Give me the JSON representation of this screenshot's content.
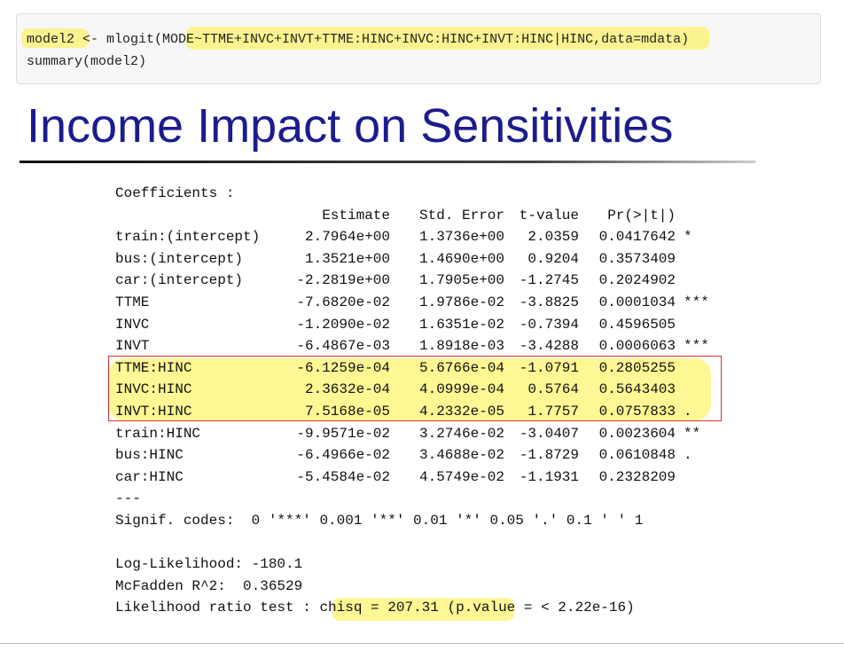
{
  "code": [
    "model2 <- mlogit(MODE~TTME+INVC+INVT+TTME:HINC+INVC:HINC+INVT:HINC|HINC,data=mdata)",
    "summary(model2)"
  ],
  "title": "Income Impact on Sensitivities",
  "output": {
    "heading": "Coefficients :",
    "columns": [
      "Estimate",
      "Std. Error",
      "t-value",
      "Pr(>|t|)"
    ],
    "rows": [
      [
        "train:(intercept)",
        "2.7964e+00",
        "1.3736e+00",
        "2.0359",
        "0.0417642",
        "*"
      ],
      [
        "bus:(intercept)",
        "1.3521e+00",
        "1.4690e+00",
        "0.9204",
        "0.3573409"
      ],
      [
        "car:(intercept)",
        "-2.2819e+00",
        "1.7905e+00",
        "-1.2745",
        "0.2024902"
      ],
      [
        "TTME",
        "-7.6820e-02",
        "1.9786e-02",
        "-3.8825",
        "0.0001034",
        "***"
      ],
      [
        "INVC",
        "-1.2090e-02",
        "1.6351e-02",
        "-0.7394",
        "0.4596505"
      ],
      [
        "INVT",
        "-6.4867e-03",
        "1.8918e-03",
        "-3.4288",
        "0.0006063",
        "***"
      ],
      [
        "TTME:HINC",
        "-6.1259e-04",
        "5.6766e-04",
        "-1.0791",
        "0.2805255"
      ],
      [
        "INVC:HINC",
        "2.3632e-04",
        "4.0999e-04",
        "0.5764",
        "0.5643403"
      ],
      [
        "INVT:HINC",
        "7.5168e-05",
        "4.2332e-05",
        "1.7757",
        "0.0757833",
        "."
      ],
      [
        "train:HINC",
        "-9.9571e-02",
        "3.2746e-02",
        "-3.0407",
        "0.0023604",
        "**"
      ],
      [
        "bus:HINC",
        "-6.4966e-02",
        "3.4688e-02",
        "-1.8729",
        "0.0610848",
        "."
      ],
      [
        "car:HINC",
        "-5.4584e-02",
        "4.5749e-02",
        "-1.1931",
        "0.2328209"
      ]
    ],
    "separator": "---",
    "signif": "Signif. codes:  0 '***' 0.001 '**' 0.01 '*' 0.05 '.' 0.1 ' ' 1",
    "stats": [
      "Log-Likelihood: -180.1",
      "McFadden R^2:  0.36529",
      "Likelihood ratio test : chisq = 207.31 (p.value = < 2.22e-16)"
    ]
  }
}
